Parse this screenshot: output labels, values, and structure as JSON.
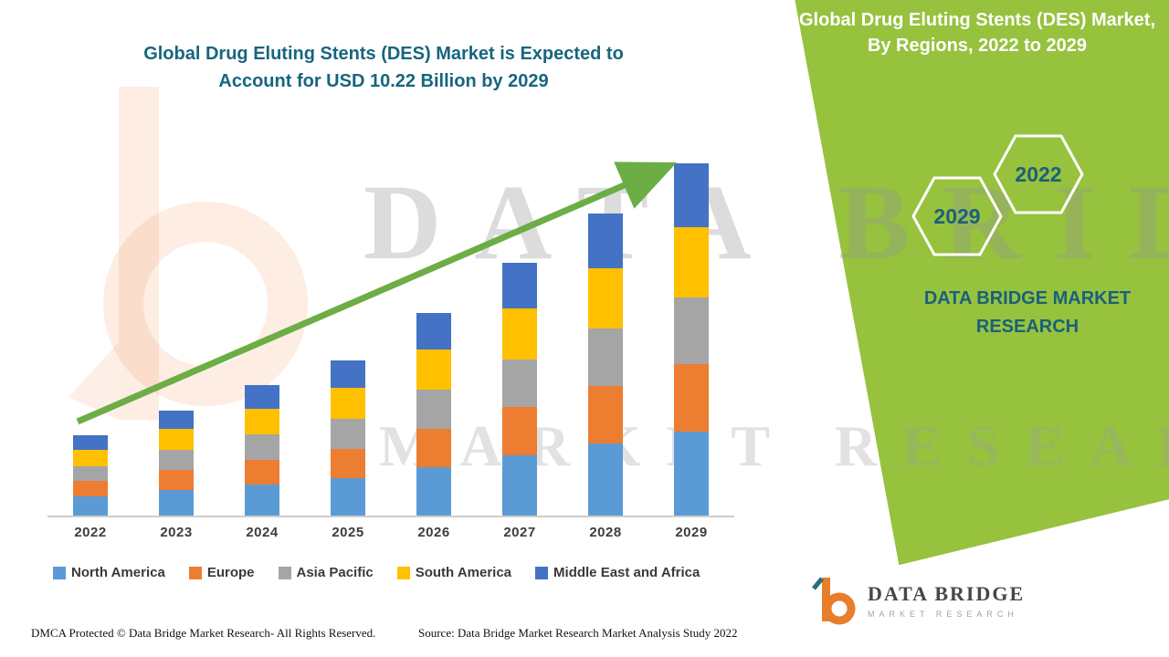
{
  "main_title": "Global Drug Eluting Stents (DES) Market is Expected to Account for USD 10.22 Billion by 2029",
  "side_panel": {
    "title": "Global Drug Eluting Stents (DES) Market, By Regions, 2022 to 2029",
    "hex_back_year": "2022",
    "hex_front_year": "2029",
    "brand_text": "DATA BRIDGE MARKET RESEARCH",
    "panel_color": "#96C23E"
  },
  "watermark": {
    "line1": "DATA BRIDGE",
    "line2": "MARKET RESEARCH"
  },
  "colors": {
    "accent_teal": "#17657F",
    "arrow_green": "#6CAD45",
    "panel_green": "#96C23E"
  },
  "chart_data": {
    "type": "bar",
    "stacked": true,
    "title": "Global Drug Eluting Stents (DES) Market, By Regions, 2022 to 2029",
    "unit": "USD Billion",
    "categories": [
      "2022",
      "2023",
      "2024",
      "2025",
      "2026",
      "2027",
      "2028",
      "2029"
    ],
    "series": [
      {
        "name": "North America",
        "color": "#5B9BD5",
        "values": [
          0.56,
          0.74,
          0.91,
          1.08,
          1.41,
          1.76,
          2.1,
          2.45
        ]
      },
      {
        "name": "Europe",
        "color": "#ED7D31",
        "values": [
          0.44,
          0.58,
          0.72,
          0.86,
          1.12,
          1.39,
          1.67,
          1.94
        ]
      },
      {
        "name": "Asia Pacific",
        "color": "#A5A5A5",
        "values": [
          0.44,
          0.58,
          0.72,
          0.86,
          1.12,
          1.39,
          1.67,
          1.94
        ]
      },
      {
        "name": "South America",
        "color": "#FFC000",
        "values": [
          0.47,
          0.61,
          0.76,
          0.9,
          1.18,
          1.47,
          1.75,
          2.04
        ]
      },
      {
        "name": "Middle East and Africa",
        "color": "#4472C4",
        "values": [
          0.42,
          0.55,
          0.68,
          0.81,
          1.06,
          1.32,
          1.58,
          1.85
        ]
      }
    ],
    "totals": [
      2.33,
      3.06,
      3.79,
      4.51,
      5.89,
      7.33,
      8.77,
      10.22
    ],
    "ylim": [
      0,
      10.6
    ],
    "grid": false,
    "legend_position": "bottom",
    "annotations": [
      "green upward trend arrow across bars"
    ]
  },
  "footer": {
    "dmca": "DMCA Protected © Data Bridge Market Research- All Rights Reserved.",
    "source": "Source: Data Bridge Market Research Market Analysis Study 2022"
  },
  "logo": {
    "name": "DATA BRIDGE",
    "subtitle": "MARKET RESEARCH"
  }
}
